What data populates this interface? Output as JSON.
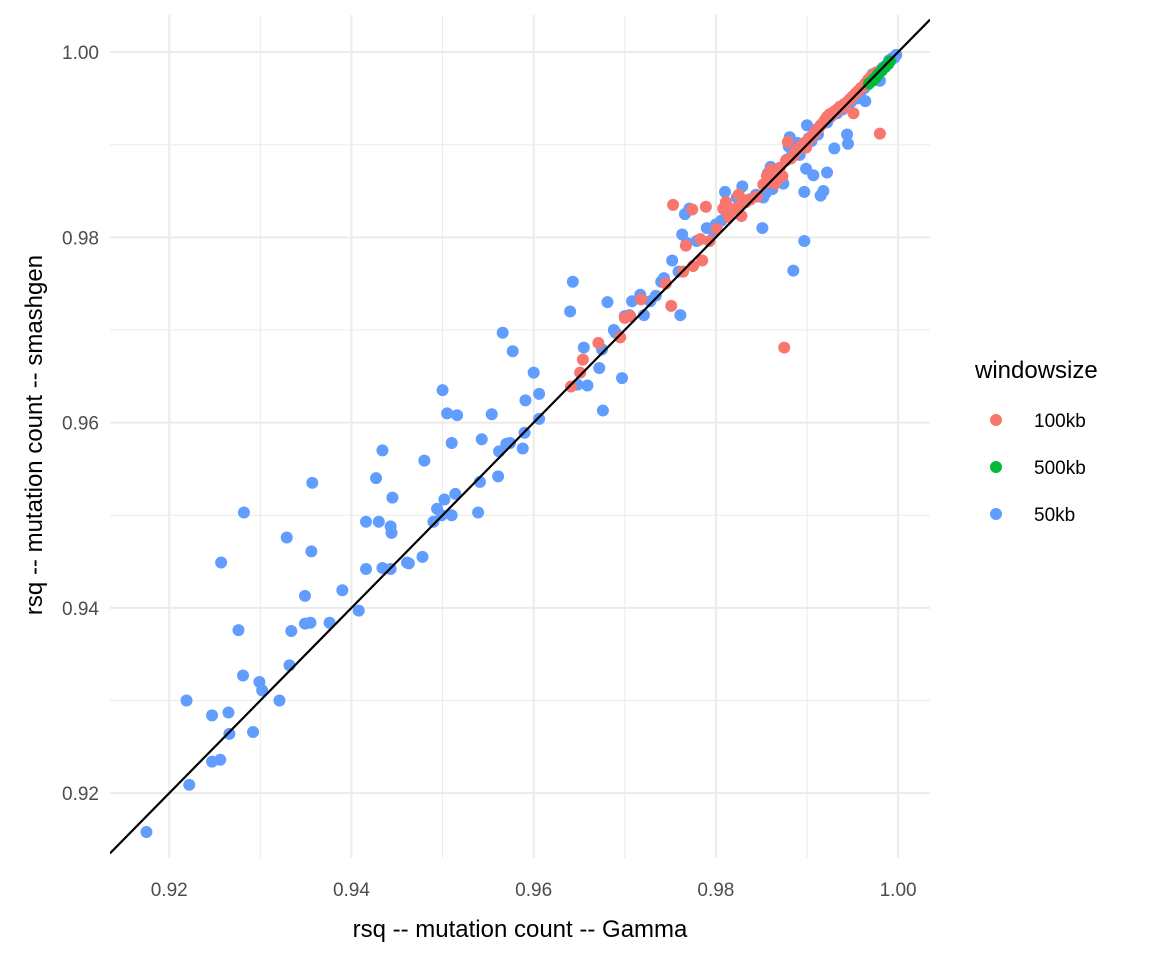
{
  "chart_data": {
    "type": "scatter",
    "title": "",
    "xlabel": "rsq -- mutation count -- Gamma",
    "ylabel": "rsq -- mutation count -- smashgen",
    "xlim": [
      0.9135,
      1.0035
    ],
    "ylim": [
      0.913,
      1.004
    ],
    "x_ticks": [
      "0.92",
      "0.94",
      "0.96",
      "0.98",
      "1.00"
    ],
    "y_ticks": [
      "0.92",
      "0.94",
      "0.96",
      "0.98",
      "1.00"
    ],
    "grid": true,
    "legend_position": "right",
    "reference_line": {
      "type": "identity",
      "color": "#000000"
    },
    "legend": {
      "title": "windowsize",
      "entries": [
        {
          "label": "100kb",
          "color": "#F8766D"
        },
        {
          "label": "500kb",
          "color": "#00BA38"
        },
        {
          "label": "50kb",
          "color": "#619CFF"
        }
      ]
    },
    "series": [
      {
        "name": "50kb",
        "color": "#619CFF",
        "points": [
          [
            0.9175,
            0.9158
          ],
          [
            0.9222,
            0.9209
          ],
          [
            0.9219,
            0.93
          ],
          [
            0.9247,
            0.9284
          ],
          [
            0.9265,
            0.9287
          ],
          [
            0.9247,
            0.9234
          ],
          [
            0.9256,
            0.9236
          ],
          [
            0.9266,
            0.9264
          ],
          [
            0.9292,
            0.9266
          ],
          [
            0.9257,
            0.9449
          ],
          [
            0.9276,
            0.9376
          ],
          [
            0.9281,
            0.9327
          ],
          [
            0.9299,
            0.932
          ],
          [
            0.9302,
            0.9311
          ],
          [
            0.9282,
            0.9503
          ],
          [
            0.9321,
            0.93
          ],
          [
            0.9332,
            0.9338
          ],
          [
            0.9329,
            0.9476
          ],
          [
            0.9334,
            0.9375
          ],
          [
            0.9349,
            0.9413
          ],
          [
            0.9349,
            0.9383
          ],
          [
            0.9355,
            0.9384
          ],
          [
            0.9356,
            0.9461
          ],
          [
            0.9357,
            0.9535
          ],
          [
            0.9376,
            0.9384
          ],
          [
            0.939,
            0.9419
          ],
          [
            0.9408,
            0.9397
          ],
          [
            0.9416,
            0.9442
          ],
          [
            0.9416,
            0.9493
          ],
          [
            0.9427,
            0.954
          ],
          [
            0.943,
            0.9493
          ],
          [
            0.9434,
            0.957
          ],
          [
            0.9434,
            0.9443
          ],
          [
            0.9443,
            0.9442
          ],
          [
            0.9444,
            0.9481
          ],
          [
            0.9443,
            0.9488
          ],
          [
            0.9445,
            0.9519
          ],
          [
            0.9461,
            0.9449
          ],
          [
            0.9463,
            0.9448
          ],
          [
            0.9478,
            0.9455
          ],
          [
            0.948,
            0.9559
          ],
          [
            0.949,
            0.9493
          ],
          [
            0.9494,
            0.9507
          ],
          [
            0.9499,
            0.95
          ],
          [
            0.95,
            0.9635
          ],
          [
            0.9502,
            0.9517
          ],
          [
            0.9505,
            0.961
          ],
          [
            0.951,
            0.95
          ],
          [
            0.951,
            0.9578
          ],
          [
            0.9514,
            0.9523
          ],
          [
            0.9516,
            0.9608
          ],
          [
            0.9539,
            0.9503
          ],
          [
            0.9541,
            0.9536
          ],
          [
            0.9543,
            0.9582
          ],
          [
            0.9554,
            0.9609
          ],
          [
            0.9561,
            0.9542
          ],
          [
            0.9562,
            0.9569
          ],
          [
            0.9566,
            0.9697
          ],
          [
            0.957,
            0.9577
          ],
          [
            0.9574,
            0.9578
          ],
          [
            0.9577,
            0.9677
          ],
          [
            0.9588,
            0.9572
          ],
          [
            0.959,
            0.9589
          ],
          [
            0.9591,
            0.9624
          ],
          [
            0.96,
            0.9654
          ],
          [
            0.9606,
            0.9631
          ],
          [
            0.9606,
            0.9604
          ],
          [
            0.964,
            0.972
          ],
          [
            0.9643,
            0.9752
          ],
          [
            0.9648,
            0.9641
          ],
          [
            0.9655,
            0.9681
          ],
          [
            0.9659,
            0.964
          ],
          [
            0.9672,
            0.9659
          ],
          [
            0.9676,
            0.9613
          ],
          [
            0.9675,
            0.9679
          ],
          [
            0.9681,
            0.973
          ],
          [
            0.9688,
            0.97
          ],
          [
            0.969,
            0.9697
          ],
          [
            0.9697,
            0.9648
          ],
          [
            0.97,
            0.9715
          ],
          [
            0.9705,
            0.9716
          ],
          [
            0.9708,
            0.9731
          ],
          [
            0.9717,
            0.9738
          ],
          [
            0.9721,
            0.9716
          ],
          [
            0.9728,
            0.9731
          ],
          [
            0.9734,
            0.9737
          ],
          [
            0.974,
            0.9752
          ],
          [
            0.9743,
            0.9756
          ],
          [
            0.9752,
            0.9775
          ],
          [
            0.9759,
            0.9763
          ],
          [
            0.9761,
            0.9716
          ],
          [
            0.9763,
            0.9803
          ],
          [
            0.9766,
            0.9825
          ],
          [
            0.9768,
            0.9794
          ],
          [
            0.9771,
            0.9831
          ],
          [
            0.9779,
            0.9796
          ],
          [
            0.979,
            0.981
          ],
          [
            0.9797,
            0.9807
          ],
          [
            0.98,
            0.9814
          ],
          [
            0.9806,
            0.9818
          ],
          [
            0.981,
            0.9849
          ],
          [
            0.9812,
            0.9826
          ],
          [
            0.9818,
            0.983
          ],
          [
            0.9823,
            0.9843
          ],
          [
            0.9828,
            0.9838
          ],
          [
            0.9829,
            0.9855
          ],
          [
            0.9837,
            0.9841
          ],
          [
            0.9844,
            0.9846
          ],
          [
            0.9848,
            0.9844
          ],
          [
            0.9851,
            0.981
          ],
          [
            0.9852,
            0.9843
          ],
          [
            0.9855,
            0.9848
          ],
          [
            0.9857,
            0.9869
          ],
          [
            0.986,
            0.9876
          ],
          [
            0.9862,
            0.9852
          ],
          [
            0.9865,
            0.9858
          ],
          [
            0.987,
            0.9863
          ],
          [
            0.9874,
            0.9858
          ],
          [
            0.9878,
            0.9884
          ],
          [
            0.988,
            0.9898
          ],
          [
            0.9881,
            0.9908
          ],
          [
            0.9884,
            0.989
          ],
          [
            0.9885,
            0.9764
          ],
          [
            0.9887,
            0.9896
          ],
          [
            0.9889,
            0.9902
          ],
          [
            0.9892,
            0.9889
          ],
          [
            0.9895,
            0.9898
          ],
          [
            0.9897,
            0.9796
          ],
          [
            0.9897,
            0.9849
          ],
          [
            0.9899,
            0.9874
          ],
          [
            0.99,
            0.9921
          ],
          [
            0.9902,
            0.9907
          ],
          [
            0.9905,
            0.9904
          ],
          [
            0.9907,
            0.9867
          ],
          [
            0.9911,
            0.9917
          ],
          [
            0.9912,
            0.9911
          ],
          [
            0.9915,
            0.9845
          ],
          [
            0.9918,
            0.985
          ],
          [
            0.992,
            0.9924
          ],
          [
            0.9922,
            0.9924
          ],
          [
            0.9922,
            0.987
          ],
          [
            0.9926,
            0.993
          ],
          [
            0.993,
            0.9896
          ],
          [
            0.9933,
            0.9934
          ],
          [
            0.9935,
            0.9937
          ],
          [
            0.9939,
            0.9938
          ],
          [
            0.9941,
            0.9942
          ],
          [
            0.9944,
            0.9911
          ],
          [
            0.9945,
            0.9901
          ],
          [
            0.9948,
            0.9946
          ],
          [
            0.9952,
            0.995
          ],
          [
            0.9955,
            0.995
          ],
          [
            0.9958,
            0.9955
          ],
          [
            0.996,
            0.9961
          ],
          [
            0.9963,
            0.9961
          ],
          [
            0.9964,
            0.9947
          ],
          [
            0.9967,
            0.9965
          ],
          [
            0.997,
            0.997
          ],
          [
            0.9972,
            0.9976
          ],
          [
            0.9975,
            0.9977
          ],
          [
            0.9978,
            0.9975
          ],
          [
            0.998,
            0.9969
          ],
          [
            0.9983,
            0.9983
          ],
          [
            0.9986,
            0.9985
          ],
          [
            0.999,
            0.9991
          ],
          [
            0.9993,
            0.9993
          ],
          [
            0.9996,
            0.9994
          ],
          [
            0.9998,
            0.9997
          ]
        ]
      },
      {
        "name": "100kb",
        "color": "#F8766D",
        "points": [
          [
            0.9641,
            0.9639
          ],
          [
            0.9651,
            0.9654
          ],
          [
            0.9654,
            0.9668
          ],
          [
            0.9671,
            0.9686
          ],
          [
            0.9695,
            0.9692
          ],
          [
            0.97,
            0.9713
          ],
          [
            0.9706,
            0.9715
          ],
          [
            0.9718,
            0.9733
          ],
          [
            0.9745,
            0.975
          ],
          [
            0.9751,
            0.9726
          ],
          [
            0.9753,
            0.9835
          ],
          [
            0.9764,
            0.9763
          ],
          [
            0.9767,
            0.9791
          ],
          [
            0.9775,
            0.9769
          ],
          [
            0.9774,
            0.983
          ],
          [
            0.9783,
            0.9798
          ],
          [
            0.9785,
            0.9775
          ],
          [
            0.9789,
            0.9833
          ],
          [
            0.9793,
            0.9796
          ],
          [
            0.9801,
            0.9809
          ],
          [
            0.9808,
            0.9831
          ],
          [
            0.9811,
            0.9838
          ],
          [
            0.9814,
            0.9822
          ],
          [
            0.9817,
            0.9829
          ],
          [
            0.9823,
            0.9832
          ],
          [
            0.9825,
            0.9846
          ],
          [
            0.9828,
            0.9823
          ],
          [
            0.9831,
            0.984
          ],
          [
            0.9833,
            0.9838
          ],
          [
            0.9838,
            0.9841
          ],
          [
            0.9845,
            0.9844
          ],
          [
            0.9852,
            0.9857
          ],
          [
            0.9856,
            0.9866
          ],
          [
            0.9859,
            0.986
          ],
          [
            0.986,
            0.9873
          ],
          [
            0.9865,
            0.9858
          ],
          [
            0.9869,
            0.9864
          ],
          [
            0.987,
            0.9875
          ],
          [
            0.9873,
            0.9866
          ],
          [
            0.9875,
            0.9681
          ],
          [
            0.9877,
            0.9883
          ],
          [
            0.9879,
            0.9903
          ],
          [
            0.9882,
            0.9885
          ],
          [
            0.9885,
            0.9888
          ],
          [
            0.9887,
            0.9892
          ],
          [
            0.9891,
            0.9896
          ],
          [
            0.9894,
            0.9899
          ],
          [
            0.9897,
            0.9902
          ],
          [
            0.9899,
            0.9897
          ],
          [
            0.9902,
            0.9906
          ],
          [
            0.9905,
            0.9909
          ],
          [
            0.9908,
            0.9912
          ],
          [
            0.991,
            0.9915
          ],
          [
            0.9913,
            0.9918
          ],
          [
            0.9915,
            0.9921
          ],
          [
            0.9918,
            0.9924
          ],
          [
            0.992,
            0.9927
          ],
          [
            0.9922,
            0.993
          ],
          [
            0.9925,
            0.9933
          ],
          [
            0.9928,
            0.9932
          ],
          [
            0.993,
            0.9936
          ],
          [
            0.9933,
            0.9938
          ],
          [
            0.9936,
            0.9941
          ],
          [
            0.9938,
            0.9939
          ],
          [
            0.9941,
            0.9944
          ],
          [
            0.9944,
            0.9946
          ],
          [
            0.9947,
            0.9949
          ],
          [
            0.995,
            0.9952
          ],
          [
            0.9951,
            0.9934
          ],
          [
            0.9953,
            0.9955
          ],
          [
            0.9956,
            0.9958
          ],
          [
            0.9959,
            0.9961
          ],
          [
            0.9962,
            0.9963
          ],
          [
            0.9964,
            0.9966
          ],
          [
            0.9967,
            0.997
          ],
          [
            0.997,
            0.9973
          ],
          [
            0.9973,
            0.9975
          ],
          [
            0.9976,
            0.9978
          ],
          [
            0.998,
            0.9912
          ]
        ]
      },
      {
        "name": "500kb",
        "color": "#00BA38",
        "points": [
          [
            0.9968,
            0.9966
          ],
          [
            0.9972,
            0.9969
          ],
          [
            0.9975,
            0.9972
          ],
          [
            0.9978,
            0.9976
          ],
          [
            0.9982,
            0.998
          ],
          [
            0.9986,
            0.9984
          ],
          [
            0.9989,
            0.9987
          ],
          [
            0.9991,
            0.999
          ]
        ]
      }
    ]
  }
}
